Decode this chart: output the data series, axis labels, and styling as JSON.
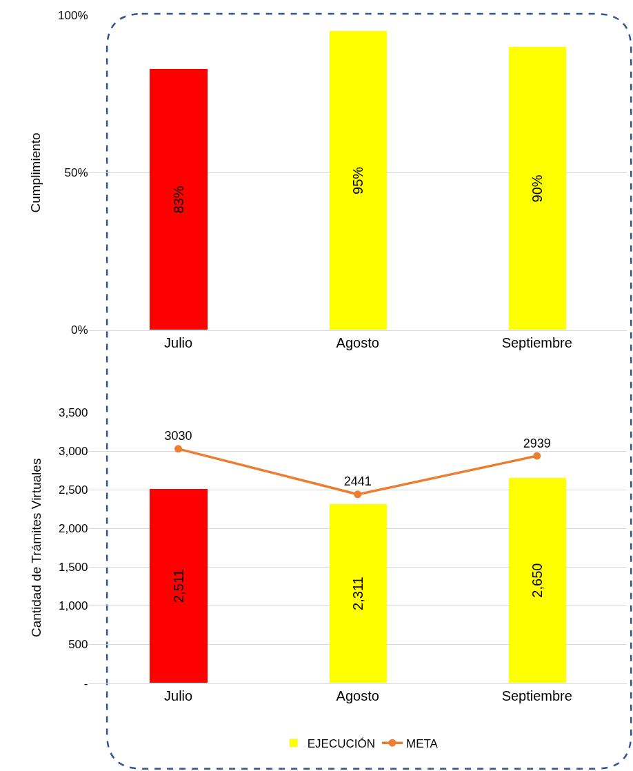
{
  "chart_data": [
    {
      "type": "bar",
      "ylabel": "Cumplimiento",
      "categories": [
        "Julio",
        "Agosto",
        "Septiembre"
      ],
      "values": [
        83,
        95,
        90
      ],
      "colors": [
        "#ff0000",
        "#ffff00",
        "#ffff00"
      ],
      "value_labels": [
        "83%",
        "95%",
        "90%"
      ],
      "ylim": [
        0,
        100
      ],
      "yticks": [
        {
          "value": 0,
          "label": "0%"
        },
        {
          "value": 50,
          "label": "50%"
        },
        {
          "value": 100,
          "label": "100%"
        }
      ],
      "grid": "y",
      "legend": false
    },
    {
      "type": "bar",
      "ylabel": "Cantidad de Trámites Virtuales",
      "categories": [
        "Julio",
        "Agosto",
        "Septiembre"
      ],
      "series": [
        {
          "name": "EJECUCIÓN",
          "type": "bar",
          "color": "#ffff00",
          "colors": [
            "#ff0000",
            "#ffff00",
            "#ffff00"
          ],
          "values": [
            2511,
            2311,
            2650
          ],
          "value_labels": [
            "2,511",
            "2,311",
            "2,650"
          ]
        },
        {
          "name": "META",
          "type": "line",
          "color": "#ed7d31",
          "values": [
            3030,
            2441,
            2939
          ],
          "value_labels": [
            "3030",
            "2441",
            "2939"
          ],
          "marker": "circle",
          "line_style": "solid"
        }
      ],
      "ylim": [
        0,
        3500
      ],
      "yticks": [
        {
          "value": 0,
          "label": "-"
        },
        {
          "value": 500,
          "label": "500"
        },
        {
          "value": 1000,
          "label": "1,000"
        },
        {
          "value": 1500,
          "label": "1,500"
        },
        {
          "value": 2000,
          "label": "2,000"
        },
        {
          "value": 2500,
          "label": "2,500"
        },
        {
          "value": 3000,
          "label": "3,000"
        },
        {
          "value": 3500,
          "label": "3,500"
        }
      ],
      "grid": "y",
      "legend": "bottom"
    }
  ]
}
